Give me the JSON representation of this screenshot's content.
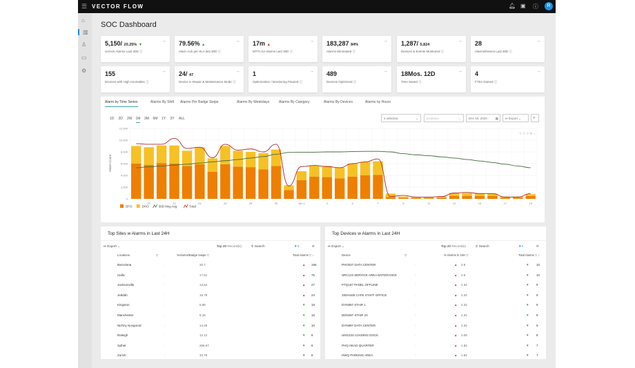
{
  "app": {
    "brand": "VECTOR FLOW",
    "avatar": "R",
    "page_title": "SOC Dashboard"
  },
  "cards": [
    {
      "value": "5,150/",
      "sub": "20.25%",
      "trend": "▼",
      "trend_dir": "dn",
      "label": "Un/Ack Alarms Last 30D"
    },
    {
      "value": "79.56%",
      "sub": "",
      "trend": "▲",
      "trend_dir": "dn",
      "label": "Alarm Ack per SLA last 30D"
    },
    {
      "value": "17m",
      "sub": "",
      "trend": "▲",
      "trend_dir": "up",
      "label": "MTTA for Alarms Last 30D"
    },
    {
      "value": "183,287",
      "sub": "84%",
      "trend": "",
      "trend_dir": "",
      "label": "Alarms Eliminated"
    },
    {
      "value": "1,287/",
      "sub": "5,824",
      "trend": "",
      "trend_dir": "",
      "label": "Devices & Events Monitored"
    },
    {
      "value": "28",
      "sub": "",
      "trend": "",
      "trend_dir": "",
      "label": "Alarms/Device Last 30D"
    },
    {
      "value": "155",
      "sub": "",
      "trend": "",
      "trend_dir": "",
      "label": "Devices with High Anomalies"
    },
    {
      "value": "24/",
      "sub": "47",
      "trend": "",
      "trend_dir": "",
      "label": "Device in Repair & Maintenance Mode"
    },
    {
      "value": "1",
      "sub": "",
      "trend": "",
      "trend_dir": "",
      "label": "Optimization / Monitoring Paused"
    },
    {
      "value": "489",
      "sub": "",
      "trend": "",
      "trend_dir": "",
      "label": "Devices Optimized"
    },
    {
      "value": "18Mos. 12D",
      "sub": "",
      "trend": "",
      "trend_dir": "",
      "label": "Time Saved"
    },
    {
      "value": "4",
      "sub": "",
      "trend": "",
      "trend_dir": "",
      "label": "FTEs Gained"
    }
  ],
  "chart_tabs": [
    "Alarm by Time Series",
    "Alarms By Shift",
    "Alarms Per Badge Swipe",
    "Alarms By Weekdays",
    "Alarms By Category",
    "Alarms By Devices",
    "Alarms by Hours"
  ],
  "ranges": [
    "1D",
    "2D",
    "2W",
    "1M",
    "3M",
    "6M",
    "1Y",
    "3Y",
    "ALL"
  ],
  "controls": {
    "selected": "4 selected",
    "locations_placeholder": "locations",
    "date": "Dec 19, 2020 -",
    "export": "Export"
  },
  "chart_data": {
    "type": "bar",
    "ylabel": "Alarm Count",
    "ylim": [
      0,
      12000
    ],
    "yticks": [
      "0",
      "2,000",
      "4,000",
      "6,000",
      "8,000",
      "10,000",
      "12,000"
    ],
    "categories": [
      "19",
      "20",
      "21",
      "22",
      "23",
      "24",
      "25",
      "26",
      "27",
      "28",
      "29",
      "30",
      "31",
      "Jan 1",
      "2",
      "3",
      "4",
      "5",
      "6",
      "7",
      "8",
      "9",
      "10",
      "11",
      "12",
      "13",
      "14",
      "15",
      "16",
      "17",
      "18",
      "19"
    ],
    "xtick_labels": [
      "20",
      "22",
      "24",
      "26",
      "28",
      "30",
      "Jan 1",
      "3",
      "5",
      "7",
      "9",
      "11",
      "13",
      "15",
      "17",
      "19"
    ],
    "series": [
      {
        "name": "DFO",
        "type": "bar",
        "color": "#ee7f00",
        "values": [
          6000,
          5800,
          6100,
          6000,
          5600,
          5900,
          4600,
          5900,
          5500,
          5400,
          5000,
          5600,
          1500,
          3200,
          3800,
          3700,
          3500,
          3800,
          4000,
          4100,
          300,
          200,
          150,
          150,
          200,
          500,
          500,
          500,
          500,
          200,
          200,
          500
        ]
      },
      {
        "name": "DHO",
        "type": "bar",
        "color": "#f6c125",
        "values": [
          3000,
          3000,
          3000,
          3100,
          2600,
          2900,
          2300,
          3100,
          2700,
          2600,
          2800,
          2800,
          800,
          1500,
          1900,
          1900,
          1800,
          2200,
          2300,
          2300,
          600,
          200,
          150,
          150,
          200,
          500,
          500,
          400,
          400,
          200,
          200,
          300
        ]
      },
      {
        "name": "30D Mvg Avg",
        "type": "line",
        "color": "#3d6b35",
        "values": [
          5300,
          5450,
          5600,
          5750,
          5900,
          6100,
          6300,
          6500,
          6700,
          6950,
          7200,
          7600,
          7900,
          7950,
          7950,
          8000,
          8000,
          8050,
          8100,
          8100,
          8000,
          7700,
          7500,
          7350,
          7150,
          6950,
          6700,
          6450,
          6200,
          5900,
          5600,
          5300
        ]
      },
      {
        "name": "Total",
        "type": "line",
        "color": "#b0272d",
        "values": [
          9400,
          9300,
          9300,
          10300,
          8600,
          8800,
          7000,
          9300,
          8300,
          8500,
          8000,
          9300,
          2200,
          5500,
          5700,
          5500,
          5300,
          6000,
          6300,
          6800,
          400,
          600,
          300,
          300,
          400,
          1000,
          1100,
          900,
          900,
          300,
          300,
          900
        ]
      }
    ]
  },
  "sites": {
    "title": "Top Sites w Alarms in Last 24H",
    "export": "Export",
    "top": "Top 20",
    "records": "Record(s)",
    "search": "Search",
    "columns": [
      "Locations",
      "%Alarms/Badge Swipe",
      "Total Alarms"
    ],
    "rows": [
      {
        "name": "Barcelona",
        "pct": "20.7",
        "dir": "up",
        "arrow": "▲",
        "total": "166"
      },
      {
        "name": "Haifa",
        "pct": "17.61",
        "dir": "up",
        "arrow": "▲",
        "total": "75"
      },
      {
        "name": "Jacksonville",
        "pct": "13.64",
        "dir": "up",
        "arrow": "▲",
        "total": "27"
      },
      {
        "name": "Jeddah",
        "pct": "15.79",
        "dir": "up",
        "arrow": "▲",
        "total": "24"
      },
      {
        "name": "Kingston",
        "pct": "5.88",
        "dir": "dn",
        "arrow": "▼",
        "total": "18"
      },
      {
        "name": "Manchester",
        "pct": "5.16",
        "dir": "dn",
        "arrow": "▼",
        "total": "16"
      },
      {
        "name": "Nizhny Novgorod",
        "pct": "14.29",
        "dir": "dn",
        "arrow": "▼",
        "total": "10"
      },
      {
        "name": "Raleigh",
        "pct": "12.12",
        "dir": "dn",
        "arrow": "▼",
        "total": "8"
      },
      {
        "name": "Sylhet",
        "pct": "266.67",
        "dir": "dn",
        "arrow": "▼",
        "total": "8"
      },
      {
        "name": "Zurich",
        "pct": "34.78",
        "dir": "dn",
        "arrow": "▼",
        "total": "8"
      }
    ]
  },
  "devices": {
    "title": "Top Devices w Alarms in Last 24H",
    "export": "Export",
    "top": "Top 20",
    "records": "Record(s)",
    "search": "Search",
    "columns": [
      "Device",
      "% Alarms In 24H",
      "Total Alarms"
    ],
    "rows": [
      {
        "name": "PHO037 DATA CENTER",
        "pct": "2.6",
        "total": "10"
      },
      {
        "name": "SRC123 SERVICE AREA ENTERANCE",
        "pct": "2.6",
        "total": "10"
      },
      {
        "name": "PTQ197 PANEL OFFLINE",
        "pct": "2.34",
        "total": "9"
      },
      {
        "name": "JSDH165 CAFE STAFF OFFICE",
        "pct": "2.34",
        "total": "9"
      },
      {
        "name": "DYN897 STAIR 1",
        "pct": "2.34",
        "total": "9"
      },
      {
        "name": "DDN497 STAIR 23",
        "pct": "2.34",
        "total": "9"
      },
      {
        "name": "DYN897 DATA CENTER",
        "pct": "2.34",
        "total": "9"
      },
      {
        "name": "UNG233 LOADING DOCK",
        "pct": "2.08",
        "total": "8"
      },
      {
        "name": "PHQ HEAD QUARTER",
        "pct": "1.82",
        "total": "7"
      },
      {
        "name": "HWQ PARKING AREA",
        "pct": "1.82",
        "total": "7"
      }
    ]
  }
}
